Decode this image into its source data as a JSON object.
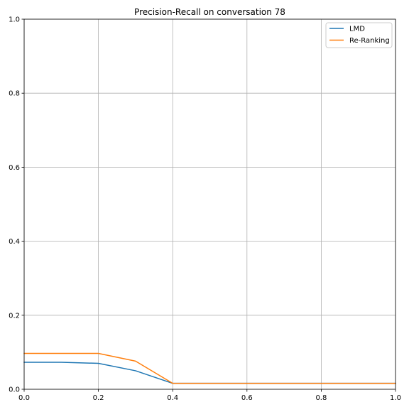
{
  "chart_data": {
    "type": "line",
    "title": "Precision-Recall on conversation 78",
    "xlabel": "",
    "ylabel": "",
    "xlim": [
      0.0,
      1.0
    ],
    "ylim": [
      0.0,
      1.0
    ],
    "xticks": [
      "0.0",
      "0.2",
      "0.4",
      "0.6",
      "0.8",
      "1.0"
    ],
    "yticks": [
      "0.0",
      "0.2",
      "0.4",
      "0.6",
      "0.8",
      "1.0"
    ],
    "grid": true,
    "legend_position": "upper right",
    "x": [
      0.0,
      0.1,
      0.2,
      0.3,
      0.4,
      0.5,
      0.6,
      0.7,
      0.8,
      0.9,
      1.0
    ],
    "series": [
      {
        "name": "LMD",
        "color": "#1f77b4",
        "values": [
          0.073,
          0.073,
          0.07,
          0.05,
          0.016,
          0.016,
          0.016,
          0.016,
          0.016,
          0.016,
          0.016
        ]
      },
      {
        "name": "Re-Ranking",
        "color": "#ff7f0e",
        "values": [
          0.097,
          0.097,
          0.097,
          0.076,
          0.016,
          0.016,
          0.016,
          0.016,
          0.016,
          0.016,
          0.016
        ]
      }
    ]
  }
}
